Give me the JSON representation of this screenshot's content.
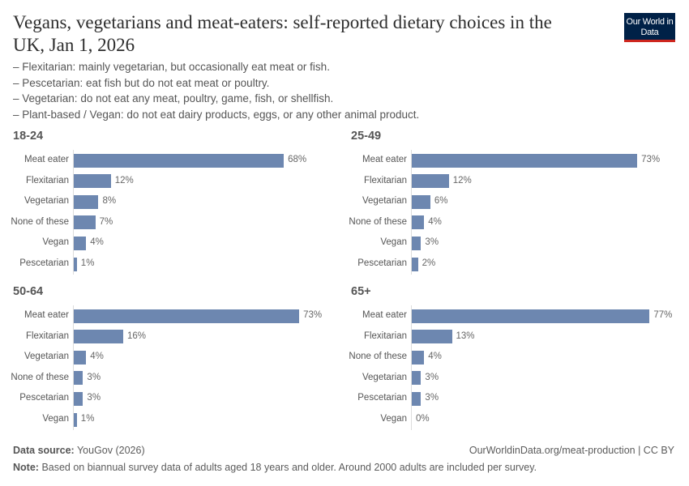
{
  "header": {
    "title": "Vegans, vegetarians and meat-eaters: self-reported dietary choices in the UK, Jan 1, 2026",
    "subtitle_lines": [
      "– Flexitarian: mainly vegetarian, but occasionally eat meat or fish.",
      "– Pescetarian: eat fish but do not eat meat or poultry.",
      "– Vegetarian: do not eat any meat, poultry, game, fish, or shellfish.",
      "– Plant-based / Vegan: do not eat dairy products, eggs, or any other animal product."
    ],
    "logo_text": "Our World in Data"
  },
  "chart_data": [
    {
      "type": "bar",
      "orientation": "horizontal",
      "title": "18-24",
      "unit": "%",
      "categories": [
        "Meat eater",
        "Flexitarian",
        "Vegetarian",
        "None of these",
        "Vegan",
        "Pescetarian"
      ],
      "values": [
        68,
        12,
        8,
        7,
        4,
        1
      ],
      "labels": [
        "68%",
        "12%",
        "8%",
        "7%",
        "4%",
        "1%"
      ]
    },
    {
      "type": "bar",
      "orientation": "horizontal",
      "title": "25-49",
      "unit": "%",
      "categories": [
        "Meat eater",
        "Flexitarian",
        "Vegetarian",
        "None of these",
        "Vegan",
        "Pescetarian"
      ],
      "values": [
        73,
        12,
        6,
        4,
        3,
        2
      ],
      "labels": [
        "73%",
        "12%",
        "6%",
        "4%",
        "3%",
        "2%"
      ]
    },
    {
      "type": "bar",
      "orientation": "horizontal",
      "title": "50-64",
      "unit": "%",
      "categories": [
        "Meat eater",
        "Flexitarian",
        "Vegetarian",
        "None of these",
        "Pescetarian",
        "Vegan"
      ],
      "values": [
        73,
        16,
        4,
        3,
        3,
        1
      ],
      "labels": [
        "73%",
        "16%",
        "4%",
        "3%",
        "3%",
        "1%"
      ]
    },
    {
      "type": "bar",
      "orientation": "horizontal",
      "title": "65+",
      "unit": "%",
      "categories": [
        "Meat eater",
        "Flexitarian",
        "None of these",
        "Vegetarian",
        "Pescetarian",
        "Vegan"
      ],
      "values": [
        77,
        13,
        4,
        3,
        3,
        0
      ],
      "labels": [
        "77%",
        "13%",
        "4%",
        "3%",
        "3%",
        "0%"
      ]
    }
  ],
  "colors": {
    "bar": "#6d87b0",
    "logo_bg": "#002147",
    "logo_accent": "#ce261e"
  },
  "footer": {
    "source_label": "Data source:",
    "source": "YouGov (2026)",
    "url": "OurWorldinData.org/meat-production | CC BY",
    "note_label": "Note:",
    "note": "Based on biannual survey data of adults aged 18 years and older. Around 2000 adults are included per survey."
  }
}
